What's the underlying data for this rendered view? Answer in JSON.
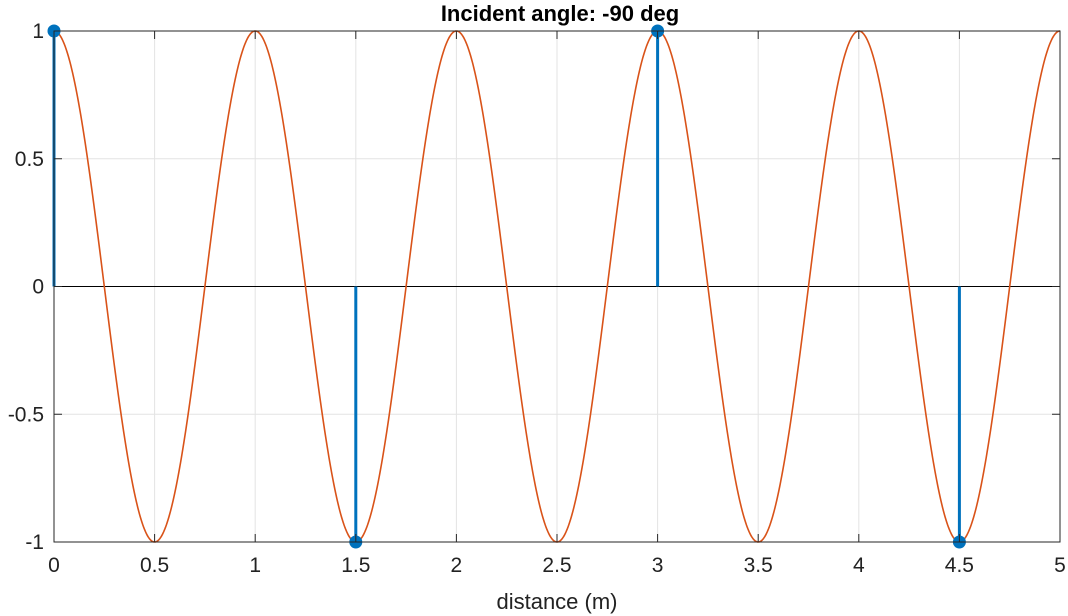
{
  "chart_data": {
    "type": "line",
    "title": "Incident angle: -90 deg",
    "xlabel": "distance (m)",
    "ylabel": "",
    "xlim": [
      0,
      5
    ],
    "ylim": [
      -1,
      1
    ],
    "grid": true,
    "legend": "none",
    "x_ticks": [
      0,
      0.5,
      1,
      1.5,
      2,
      2.5,
      3,
      3.5,
      4,
      4.5,
      5
    ],
    "x_tick_labels": [
      "0",
      "0.5",
      "1",
      "1.5",
      "2",
      "2.5",
      "3",
      "3.5",
      "4",
      "4.5",
      "5"
    ],
    "y_ticks": [
      -1,
      -0.5,
      0,
      0.5,
      1
    ],
    "y_tick_labels": [
      "-1",
      "-0.5",
      "0",
      "0.5",
      "1"
    ],
    "series": [
      {
        "kind": "line",
        "function": "cos(2*pi*x)",
        "x_range": [
          0,
          5
        ],
        "color": "#D95319"
      },
      {
        "kind": "stem",
        "x": [
          0,
          1.5,
          3,
          4.5
        ],
        "y": [
          1,
          -1,
          1,
          -1
        ],
        "color": "#0072BD"
      }
    ]
  }
}
